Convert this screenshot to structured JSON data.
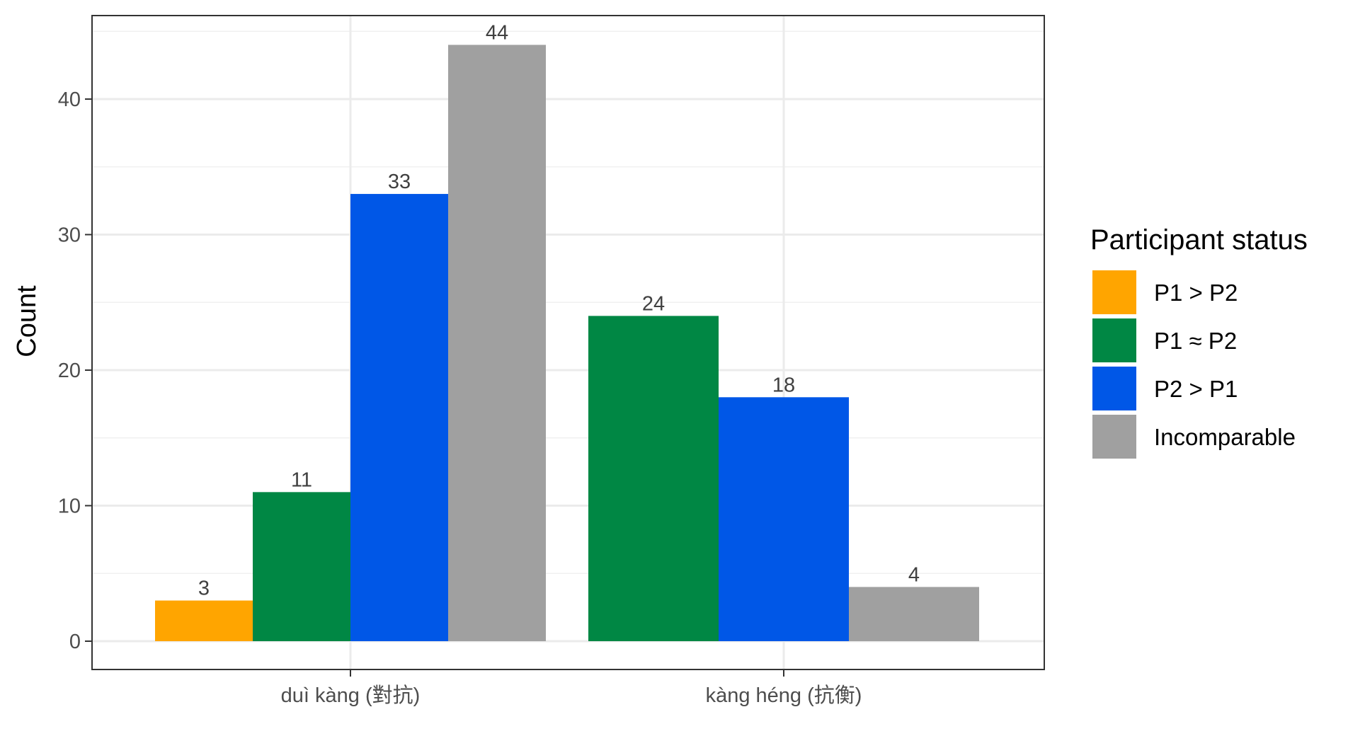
{
  "chart_data": {
    "type": "bar",
    "categories": [
      "duì kàng (對抗)",
      "kàng héng (抗衡)"
    ],
    "ylabel": "Count",
    "xlabel": "",
    "ylim": [
      0,
      46
    ],
    "yticks": [
      0,
      10,
      20,
      30,
      40
    ],
    "grid": true,
    "legend": {
      "title": "Participant status",
      "position": "right"
    },
    "series": [
      {
        "name": "P1 > P2",
        "color": "#FFA500",
        "values": [
          3,
          null
        ]
      },
      {
        "name": "P1 ≈ P2",
        "color": "#008744",
        "values": [
          11,
          24
        ]
      },
      {
        "name": "P2 > P1",
        "color": "#0057E7",
        "values": [
          33,
          18
        ]
      },
      {
        "name": "Incomparable",
        "color": "#A0A0A0",
        "values": [
          44,
          4
        ]
      }
    ]
  }
}
